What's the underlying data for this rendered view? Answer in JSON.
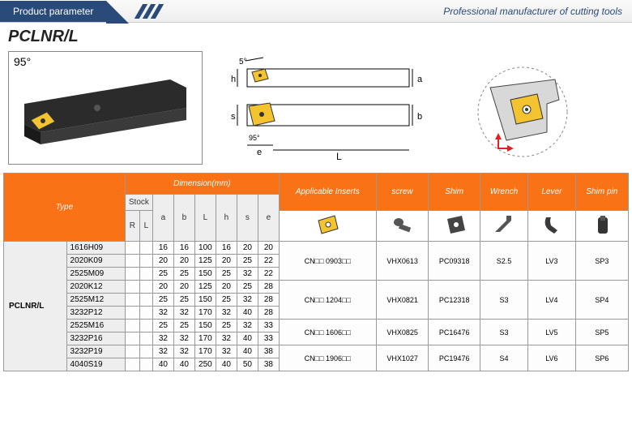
{
  "header": {
    "tab": "Product parameter",
    "tagline": "Professional manufacturer of cutting tools"
  },
  "title": "PCLNR/L",
  "diagram": {
    "angle_main": "95°",
    "angle_top": "5°",
    "labels": {
      "h": "h",
      "s": "s",
      "e": "e",
      "a": "a",
      "b": "b",
      "L": "L",
      "angle_inner": "95°"
    }
  },
  "table": {
    "headers": {
      "type": "Type",
      "dimension": "Dimension(mm)",
      "stock": "Stock",
      "stock_cols": [
        "R",
        "L"
      ],
      "dim_cols": [
        "a",
        "b",
        "L",
        "h",
        "s",
        "e"
      ],
      "acc_cols": [
        "Applicable Inserts",
        "screw",
        "Shim",
        "Wrench",
        "Lever",
        "Shim pin"
      ]
    },
    "type_label": "PCLNR/L",
    "rows": [
      {
        "model": "1616H09",
        "dims": [
          "16",
          "16",
          "100",
          "16",
          "20",
          "20"
        ]
      },
      {
        "model": "2020K09",
        "dims": [
          "20",
          "20",
          "125",
          "20",
          "25",
          "22"
        ]
      },
      {
        "model": "2525M09",
        "dims": [
          "25",
          "25",
          "150",
          "25",
          "32",
          "22"
        ]
      },
      {
        "model": "2020K12",
        "dims": [
          "20",
          "20",
          "125",
          "20",
          "25",
          "28"
        ]
      },
      {
        "model": "2525M12",
        "dims": [
          "25",
          "25",
          "150",
          "25",
          "32",
          "28"
        ]
      },
      {
        "model": "3232P12",
        "dims": [
          "32",
          "32",
          "170",
          "32",
          "40",
          "28"
        ]
      },
      {
        "model": "2525M16",
        "dims": [
          "25",
          "25",
          "150",
          "25",
          "32",
          "33"
        ]
      },
      {
        "model": "3232P16",
        "dims": [
          "32",
          "32",
          "170",
          "32",
          "40",
          "33"
        ]
      },
      {
        "model": "3232P19",
        "dims": [
          "32",
          "32",
          "170",
          "32",
          "40",
          "38"
        ]
      },
      {
        "model": "4040S19",
        "dims": [
          "40",
          "40",
          "250",
          "40",
          "50",
          "38"
        ]
      }
    ],
    "groups": [
      {
        "span": 3,
        "insert": "CN□□ 0903□□",
        "screw": "VHX0613",
        "shim": "PC09318",
        "wrench": "S2.5",
        "lever": "LV3",
        "pin": "SP3"
      },
      {
        "span": 3,
        "insert": "CN□□ 1204□□",
        "screw": "VHX0821",
        "shim": "PC12318",
        "wrench": "S3",
        "lever": "LV4",
        "pin": "SP4"
      },
      {
        "span": 2,
        "insert": "CN□□ 1606□□",
        "screw": "VHX0825",
        "shim": "PC16476",
        "wrench": "S3",
        "lever": "LV5",
        "pin": "SP5"
      },
      {
        "span": 2,
        "insert": "CN□□ 1906□□",
        "screw": "VHX1027",
        "shim": "PC19476",
        "wrench": "S4",
        "lever": "LV6",
        "pin": "SP6"
      }
    ]
  },
  "colors": {
    "header_bg": "#2a4a7a",
    "orange": "#f97316",
    "insert_yellow": "#f4c430",
    "tool_dark": "#2b2b2b",
    "border": "#999999"
  }
}
